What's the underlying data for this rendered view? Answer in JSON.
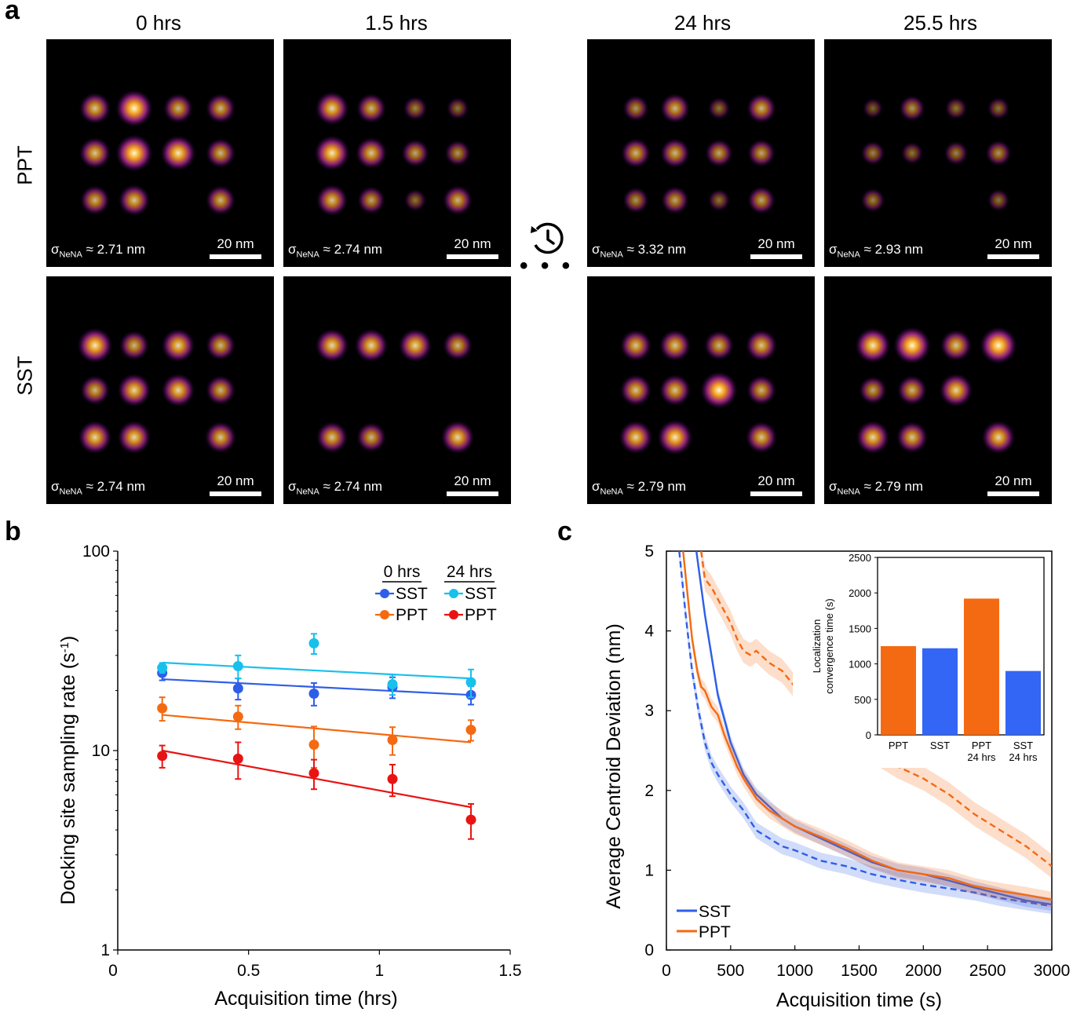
{
  "panel_a": {
    "letter": "a",
    "columns": [
      "0 hrs",
      "1.5 hrs",
      "24 hrs",
      "25.5 hrs"
    ],
    "rows": [
      "PPT",
      "SST"
    ],
    "sigma_prefix": "σ",
    "sigma_sub": "NeNA",
    "sigma_values": {
      "PPT": [
        "≈ 2.71 nm",
        "≈ 2.74 nm",
        "≈ 3.32 nm",
        "≈ 2.93 nm"
      ],
      "SST": [
        "≈ 2.74 nm",
        "≈ 2.74 nm",
        "≈ 2.79 nm",
        "≈ 2.79 nm"
      ]
    },
    "scale_label": "20 nm",
    "ellipsis": "• • •",
    "history_icon": "history-clock-icon",
    "spot_brightness": {
      "PPT": [
        [
          0.7,
          1.0,
          0.6,
          0.6,
          0.7,
          1.0,
          0.9,
          0.6,
          0.6,
          0.7,
          0.0,
          0.6
        ],
        [
          0.8,
          0.6,
          0.3,
          0.2,
          0.9,
          0.7,
          0.5,
          0.4,
          0.7,
          0.5,
          0.2,
          0.6
        ],
        [
          0.4,
          0.6,
          0.2,
          0.6,
          0.6,
          0.6,
          0.5,
          0.5,
          0.4,
          0.5,
          0.2,
          0.5
        ],
        [
          0.1,
          0.4,
          0.2,
          0.2,
          0.3,
          0.2,
          0.3,
          0.4,
          0.3,
          0.0,
          0.0,
          0.2
        ]
      ],
      "SST": [
        [
          0.9,
          0.6,
          0.8,
          0.6,
          0.6,
          0.8,
          0.8,
          0.6,
          0.8,
          0.8,
          0.0,
          0.7
        ],
        [
          0.8,
          0.8,
          0.8,
          0.6,
          0.0,
          0.0,
          0.0,
          0.0,
          0.7,
          0.6,
          0.0,
          0.8
        ],
        [
          0.7,
          0.7,
          0.6,
          0.7,
          0.7,
          0.7,
          1.0,
          0.6,
          0.8,
          0.9,
          0.0,
          0.7
        ],
        [
          0.9,
          1.0,
          0.7,
          1.0,
          0.5,
          0.6,
          0.8,
          0.0,
          0.8,
          0.7,
          0.0,
          0.8
        ]
      ]
    }
  },
  "panel_b": {
    "letter": "b",
    "chart_data": {
      "type": "scatter",
      "xlabel": "Acquisition time (hrs)",
      "ylabel": "Docking site sampling rate (s⁻¹)",
      "ylabel_main": "Docking site sampling rate (s",
      "ylabel_sup": "-1",
      "ylabel_end": ")",
      "log_y": true,
      "xlim": [
        0,
        1.5
      ],
      "ylim": [
        1,
        100
      ],
      "x_ticks": [
        "0",
        "0.5",
        "1",
        "1.5"
      ],
      "y_ticks": [
        "1",
        "10",
        "100"
      ],
      "legend_headers": [
        "0 hrs",
        "24 hrs"
      ],
      "legend_placement": "top-right",
      "series": [
        {
          "name": "SST",
          "group": "0 hrs",
          "color": "#2e5ee8",
          "x": [
            0.17,
            0.46,
            0.75,
            1.05,
            1.35
          ],
          "y": [
            24.5,
            20.5,
            19.3,
            20.8,
            19.0
          ],
          "err": [
            2.0,
            2.5,
            2.5,
            2.5,
            2.0
          ],
          "fit": [
            22.8,
            19.0
          ]
        },
        {
          "name": "SST",
          "group": "24 hrs",
          "color": "#18c0ec",
          "x": [
            0.17,
            0.46,
            0.75,
            1.05,
            1.35
          ],
          "y": [
            26.0,
            26.5,
            34.5,
            21.5,
            22.0
          ],
          "err": [
            1.5,
            3.5,
            4.0,
            2.5,
            3.5
          ],
          "fit": [
            27.6,
            23.0
          ]
        },
        {
          "name": "PPT",
          "group": "0 hrs",
          "color": "#f46a12",
          "x": [
            0.17,
            0.46,
            0.75,
            1.05,
            1.35
          ],
          "y": [
            16.3,
            14.8,
            10.7,
            11.3,
            12.7
          ],
          "err": [
            2.2,
            2.0,
            2.5,
            1.8,
            1.5
          ],
          "fit": [
            15.1,
            11.0
          ]
        },
        {
          "name": "PPT",
          "group": "24 hrs",
          "color": "#e81414",
          "x": [
            0.17,
            0.46,
            0.75,
            1.05,
            1.35
          ],
          "y": [
            9.4,
            9.1,
            7.7,
            7.2,
            4.5
          ],
          "err": [
            1.2,
            1.9,
            1.3,
            1.3,
            0.9
          ],
          "fit": [
            10.0,
            5.2
          ]
        }
      ]
    }
  },
  "panel_c": {
    "letter": "c",
    "chart_data": {
      "type": "line",
      "xlabel": "Acquisition time (s)",
      "ylabel": "Average Centroid Deviation (nm)",
      "xlim": [
        0,
        3000
      ],
      "ylim": [
        0,
        5
      ],
      "x_ticks": [
        "0",
        "500",
        "1000",
        "1500",
        "2000",
        "2500",
        "3000"
      ],
      "y_ticks": [
        "0",
        "1",
        "2",
        "3",
        "4",
        "5"
      ],
      "legend_placement": "bottom-left",
      "legend": [
        {
          "name": "SST",
          "color": "#2e5ee8"
        },
        {
          "name": "PPT",
          "color": "#f46a12"
        }
      ],
      "series": [
        {
          "name": "SST",
          "style": "solid",
          "color": "#2e5ee8",
          "x": [
            150,
            250,
            300,
            350,
            400,
            450,
            500,
            600,
            700,
            800,
            900,
            1000,
            1200,
            1400,
            1600,
            1800,
            2000,
            2200,
            2400,
            2600,
            2800,
            3000
          ],
          "y": [
            6.0,
            4.8,
            4.2,
            3.7,
            3.2,
            2.9,
            2.6,
            2.2,
            1.95,
            1.8,
            1.65,
            1.55,
            1.4,
            1.25,
            1.1,
            1.0,
            0.95,
            0.87,
            0.78,
            0.7,
            0.62,
            0.57
          ],
          "band": 0.08
        },
        {
          "name": "SST 24 hrs",
          "style": "dashed",
          "color": "#2e5ee8",
          "x": [
            100,
            150,
            200,
            250,
            300,
            350,
            400,
            500,
            600,
            700,
            800,
            900,
            1000,
            1200,
            1400,
            1600,
            1800,
            2000,
            2200,
            2400,
            2600,
            2800,
            3000
          ],
          "y": [
            5.0,
            4.2,
            3.5,
            3.0,
            2.6,
            2.35,
            2.2,
            1.95,
            1.75,
            1.5,
            1.4,
            1.3,
            1.25,
            1.12,
            1.05,
            0.95,
            0.88,
            0.82,
            0.77,
            0.72,
            0.65,
            0.6,
            0.55
          ],
          "band": 0.1
        },
        {
          "name": "PPT",
          "style": "solid",
          "color": "#f46a12",
          "x": [
            130,
            200,
            240,
            270,
            300,
            350,
            400,
            450,
            500,
            550,
            600,
            700,
            800,
            900,
            1000,
            1200,
            1400,
            1600,
            1800,
            2000,
            2200,
            2400,
            2600,
            2800,
            3000
          ],
          "y": [
            5.0,
            3.9,
            3.5,
            3.3,
            3.25,
            3.05,
            2.95,
            2.7,
            2.5,
            2.3,
            2.15,
            1.9,
            1.75,
            1.65,
            1.55,
            1.42,
            1.28,
            1.12,
            1.0,
            0.95,
            0.9,
            0.8,
            0.74,
            0.69,
            0.63
          ],
          "band": 0.1
        },
        {
          "name": "PPT 24 hrs",
          "style": "dashed",
          "color": "#f46a12",
          "x": [
            270,
            300,
            350,
            400,
            450,
            500,
            550,
            600,
            650,
            700,
            800,
            900,
            1000,
            1100,
            1200,
            1300,
            1400,
            1600,
            1800,
            2000,
            2200,
            2400,
            2600,
            2800,
            3000
          ],
          "y": [
            5.0,
            4.65,
            4.55,
            4.4,
            4.25,
            4.1,
            3.9,
            3.75,
            3.7,
            3.75,
            3.6,
            3.5,
            3.3,
            3.1,
            2.95,
            2.8,
            2.7,
            2.5,
            2.3,
            2.15,
            1.95,
            1.7,
            1.5,
            1.3,
            1.05
          ],
          "band": 0.15
        }
      ],
      "inset": {
        "type": "bar",
        "ylabel_line1": "Localization",
        "ylabel_line2": "convergence time (s)",
        "ylim": [
          0,
          2500
        ],
        "y_ticks": [
          "0",
          "500",
          "1000",
          "1500",
          "2000",
          "2500"
        ],
        "categories": [
          [
            "PPT"
          ],
          [
            "SST"
          ],
          [
            "PPT",
            "24 hrs"
          ],
          [
            "SST",
            "24 hrs"
          ]
        ],
        "values": [
          1250,
          1220,
          1920,
          900
        ],
        "colors": [
          "#f46a12",
          "#3366f5",
          "#f46a12",
          "#3366f5"
        ]
      }
    }
  }
}
